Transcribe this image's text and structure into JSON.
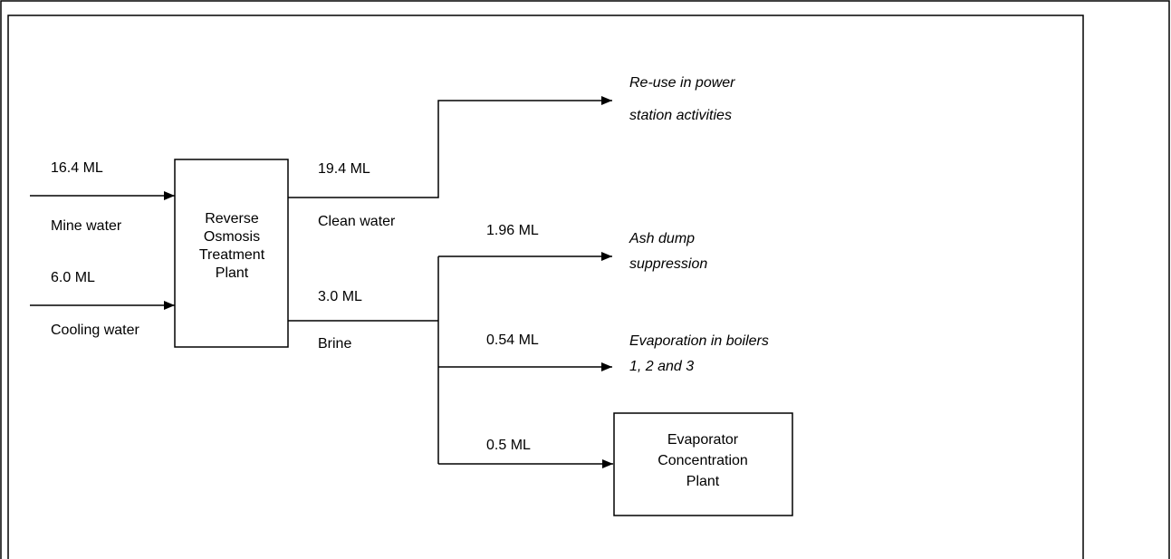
{
  "nodes": [
    {
      "id": "ro",
      "label": [
        "Reverse",
        "Osmosis",
        "Treatment",
        "Plant"
      ]
    },
    {
      "id": "evap",
      "label": [
        "Evaporator",
        "Concentration",
        "Plant"
      ]
    }
  ],
  "inputs": [
    {
      "amount": "16.4 ML",
      "name": "Mine water"
    },
    {
      "amount": "6.0 ML",
      "name": "Cooling water"
    }
  ],
  "outputs": [
    {
      "amount": "19.4 ML",
      "name": "Clean water"
    },
    {
      "amount": "3.0 ML",
      "name": "Brine"
    }
  ],
  "destinations": [
    {
      "label": [
        "Re-use in power",
        "station activities"
      ]
    },
    {
      "amount": "1.96 ML",
      "label": [
        "Ash dump",
        "suppression"
      ]
    },
    {
      "amount": "0.54 ML",
      "label": [
        "Evaporation in boilers",
        "1, 2 and 3"
      ]
    },
    {
      "amount": "0.5 ML"
    }
  ]
}
